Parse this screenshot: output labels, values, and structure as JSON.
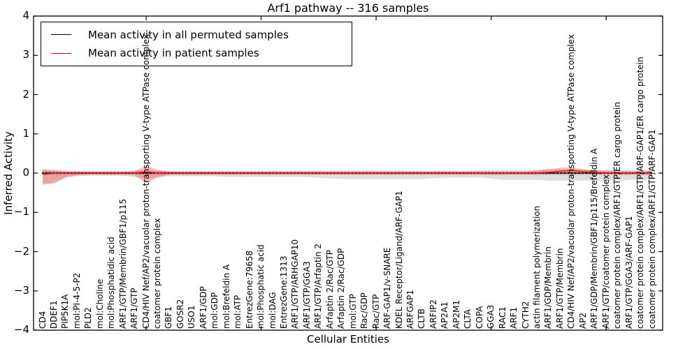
{
  "chart_data": {
    "type": "line",
    "title": "Arf1 pathway -- 316 samples",
    "xlabel": "Cellular Entities",
    "ylabel": "Inferred Activity",
    "ylim": [
      -4,
      4
    ],
    "grid": false,
    "legend_position": "upper left",
    "yticks": [
      "4",
      "3",
      "2",
      "1",
      "0",
      "−1",
      "−2",
      "−3",
      "−4"
    ],
    "ytick_values": [
      4,
      3,
      2,
      1,
      0,
      -1,
      -2,
      -3,
      -4
    ],
    "xtick_mark_indices": [
      9,
      19,
      29,
      39,
      49
    ],
    "categories": [
      "CD4",
      "DDEF1",
      "PIP5K1A",
      "mol:PI-4-5-P2",
      "PLD2",
      "mol:Choline",
      "mol:Phosphatidic acid",
      "ARF1/GTP/Membrin/GBF1/p115",
      "ARF1/GTP",
      "CD4/HIV Nef/AP2/vacuolar proton-transporting V-type ATPase complex",
      "coatomer protein complex",
      "GBF1",
      "GOSR2",
      "USO1",
      "ARF1/GDP",
      "mol:GDP",
      "mol:Brefeldin A",
      "mol:ATP",
      "EntrezGene:79658",
      "mol:Phosphatic acid",
      "mol:DAG",
      "EntrezGene:1313",
      "ARF1/GTP/ARHGAP10",
      "ARF1/GTP/GGA3",
      "ARF1/GTP/Arfaptin 2",
      "Arfaptin 2/Rac/GTP",
      "Arfaptin 2/Rac/GDP",
      "mol:GTP",
      "Rac/GDP",
      "Rac/GTP",
      "ARF-GAP1/v-SNARE",
      "KDEL Receptor/Ligand/ARF-GAP1",
      "ARFGAP1",
      "CLTB",
      "ARFIP2",
      "AP2A1",
      "AP2M1",
      "CLTA",
      "COPA",
      "GGA3",
      "RAC1",
      "ARF1",
      "CYTH2",
      "actin filament polymerization",
      "ARF1/GDP/Membrin",
      "ARF1/GTP/Membrin",
      "CD4/HIV Nef/AP2/vacuolar proton-transporting V-type ATPase complex",
      "AP2",
      "ARF1/GDP/Membrin/GBF1/p115/Brefeldin A",
      "ARF1/GTP/coatomer protein complex",
      "coatomer protein complex/ARF1/GTP/ER cargo protein",
      "ARF1/GTP/GGA3/ARF-GAP1",
      "coatomer protein complex/ARF1/GTP/ARF-GAP1/ER cargo protein",
      "coatomer protein complex/ARF1/GTP/ARF-GAP1"
    ],
    "series": [
      {
        "name": "Mean activity in all permuted samples",
        "color": "#000000",
        "line_style": "solid-with-dots",
        "values": [
          0,
          0,
          0,
          0,
          0,
          0,
          0,
          0,
          0,
          0,
          0,
          0,
          0,
          0,
          0,
          0,
          0,
          0,
          0,
          0,
          0,
          0,
          0,
          0,
          0,
          0,
          0,
          0,
          0,
          0,
          0,
          0,
          0,
          0,
          0,
          0,
          0,
          0,
          0,
          0,
          0,
          0,
          0,
          0,
          0,
          0,
          0,
          0,
          0,
          0,
          0,
          0,
          0,
          0
        ],
        "band_color": "#a8a8a8",
        "band_opacity": 0.38,
        "core_band_halfwidth": 0.045,
        "core_band_color": "#8c8c8c",
        "core_band_opacity": 0.35,
        "band_upper": [
          0.09,
          0.09,
          0.06,
          0.05,
          0.05,
          0.05,
          0.05,
          0.05,
          0.06,
          0.08,
          0.06,
          0.05,
          0.05,
          0.05,
          0.05,
          0.05,
          0.05,
          0.05,
          0.05,
          0.05,
          0.06,
          0.06,
          0.06,
          0.06,
          0.07,
          0.07,
          0.07,
          0.07,
          0.07,
          0.07,
          0.07,
          0.07,
          0.06,
          0.06,
          0.06,
          0.06,
          0.06,
          0.06,
          0.07,
          0.08,
          0.08,
          0.08,
          0.08,
          0.09,
          0.1,
          0.1,
          0.1,
          0.09,
          0.09,
          0.09,
          0.08,
          0.08,
          0.08,
          0.08
        ],
        "band_lower": [
          -0.26,
          -0.28,
          -0.12,
          -0.08,
          -0.07,
          -0.07,
          -0.07,
          -0.07,
          -0.1,
          -0.15,
          -0.12,
          -0.08,
          -0.08,
          -0.08,
          -0.08,
          -0.08,
          -0.1,
          -0.1,
          -0.1,
          -0.1,
          -0.1,
          -0.1,
          -0.1,
          -0.1,
          -0.12,
          -0.14,
          -0.15,
          -0.15,
          -0.15,
          -0.15,
          -0.15,
          -0.15,
          -0.15,
          -0.15,
          -0.13,
          -0.12,
          -0.11,
          -0.11,
          -0.11,
          -0.14,
          -0.17,
          -0.17,
          -0.17,
          -0.17,
          -0.19,
          -0.19,
          -0.19,
          -0.19,
          -0.19,
          -0.19,
          -0.19,
          -0.17,
          -0.17,
          -0.17
        ]
      },
      {
        "name": "Mean activity in patient samples",
        "color": "#ff0000",
        "line_style": "solid",
        "values": [
          -0.03,
          0,
          0,
          0,
          0,
          0,
          0,
          0,
          0,
          0.03,
          0,
          0,
          0,
          0,
          0,
          0,
          0,
          0,
          0,
          0,
          0,
          0,
          0,
          0,
          0,
          0,
          0,
          0,
          0,
          0,
          0,
          0,
          0,
          0,
          0,
          0,
          0,
          0,
          0,
          0,
          0,
          0,
          0,
          0,
          0.02,
          0.05,
          0.07,
          0.04,
          0.02,
          0,
          0,
          0,
          0,
          0
        ],
        "band_color": "#ff2828",
        "band_opacity": 0.32,
        "band_upper": [
          0.09,
          0.06,
          0.04,
          0.03,
          0.03,
          0.03,
          0.03,
          0.03,
          0.05,
          0.19,
          0.08,
          0.04,
          0.03,
          0.03,
          0.03,
          0.03,
          0.03,
          0.03,
          0.03,
          0.03,
          0.03,
          0.03,
          0.03,
          0.03,
          0.03,
          0.03,
          0.03,
          0.03,
          0.03,
          0.03,
          0.03,
          0.03,
          0.03,
          0.03,
          0.03,
          0.03,
          0.03,
          0.03,
          0.03,
          0.03,
          0.03,
          0.03,
          0.03,
          0.06,
          0.1,
          0.13,
          0.15,
          0.1,
          0.07,
          0.05,
          0.04,
          0.04,
          0.04,
          0.04
        ],
        "band_lower": [
          -0.3,
          -0.24,
          -0.1,
          -0.05,
          -0.03,
          -0.03,
          -0.03,
          -0.03,
          -0.05,
          -0.26,
          -0.1,
          -0.04,
          -0.03,
          -0.03,
          -0.03,
          -0.03,
          -0.03,
          -0.03,
          -0.03,
          -0.03,
          -0.03,
          -0.03,
          -0.03,
          -0.03,
          -0.03,
          -0.03,
          -0.03,
          -0.03,
          -0.03,
          -0.03,
          -0.03,
          -0.03,
          -0.03,
          -0.03,
          -0.03,
          -0.03,
          -0.03,
          -0.03,
          -0.03,
          -0.03,
          -0.03,
          -0.03,
          -0.03,
          -0.03,
          -0.02,
          -0.02,
          -0.02,
          -0.02,
          -0.02,
          -0.03,
          -0.03,
          -0.03,
          -0.03,
          -0.03
        ]
      }
    ]
  }
}
